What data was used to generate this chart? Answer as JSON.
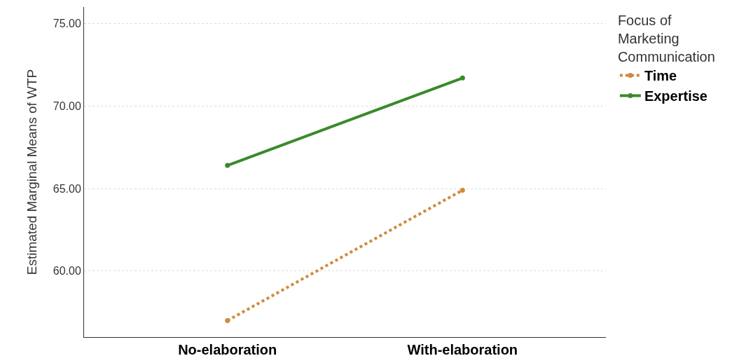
{
  "chart_data": {
    "type": "line",
    "ylabel": "Estimated Marginal Means of WTP",
    "legend_title": "Focus of Marketing Communication",
    "categories": [
      "No-elaboration",
      "With-elaboration"
    ],
    "series": [
      {
        "name": "Time",
        "color": "#d08a3c",
        "values": [
          57.0,
          64.9
        ],
        "line_style": "dotted"
      },
      {
        "name": "Expertise",
        "color": "#3a8a2a",
        "values": [
          66.4,
          71.7
        ],
        "line_style": "solid"
      }
    ],
    "ylim": [
      56,
      76
    ],
    "yticks": [
      {
        "value": 60,
        "label": "60.00"
      },
      {
        "value": 65,
        "label": "65.00"
      },
      {
        "value": 70,
        "label": "70.00"
      },
      {
        "value": 75,
        "label": "75.00"
      }
    ],
    "grid": "y",
    "legend": "top right",
    "marker": "circle"
  }
}
